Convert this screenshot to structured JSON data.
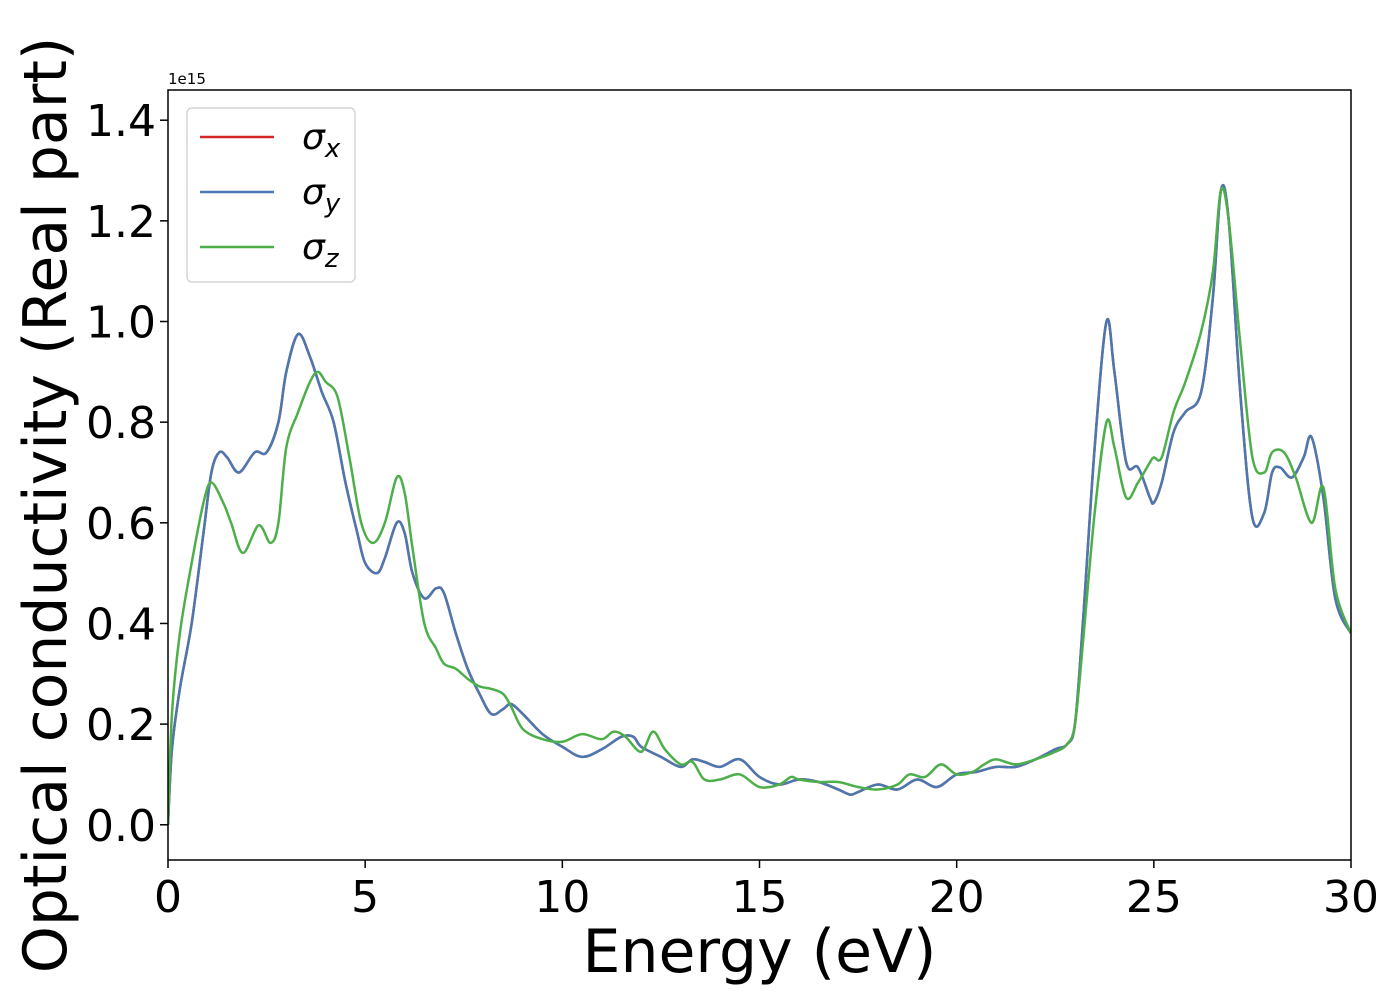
{
  "chart_data": {
    "type": "line",
    "xlabel": "Energy (eV)",
    "ylabel": "Optical conductivity (Real part)",
    "y_offset_text": "1e15",
    "xlim": [
      0,
      30
    ],
    "ylim": [
      -0.07,
      1.46
    ],
    "x_ticks": [
      0,
      5,
      10,
      15,
      20,
      25,
      30
    ],
    "x_tick_labels": [
      "0",
      "5",
      "10",
      "15",
      "20",
      "25",
      "30"
    ],
    "y_ticks": [
      0.0,
      0.2,
      0.4,
      0.6,
      0.8,
      1.0,
      1.2,
      1.4
    ],
    "y_tick_labels": [
      "0.0",
      "0.2",
      "0.4",
      "0.6",
      "0.8",
      "1.0",
      "1.2",
      "1.4"
    ],
    "grid": false,
    "legend_position": "top-left",
    "series": [
      {
        "name": "σx",
        "legend_base": "σ",
        "legend_sub": "x",
        "color": "#d62728",
        "x": [
          0,
          0.1,
          0.3,
          0.6,
          0.9,
          1.1,
          1.3,
          1.5,
          1.8,
          2.2,
          2.5,
          2.8,
          3.0,
          3.3,
          3.6,
          3.9,
          4.2,
          4.5,
          4.8,
          5.0,
          5.3,
          5.5,
          5.8,
          6.0,
          6.2,
          6.5,
          6.8,
          7.0,
          7.3,
          7.6,
          7.9,
          8.2,
          8.5,
          8.7,
          9.0,
          9.5,
          10.0,
          10.5,
          11.0,
          11.5,
          11.8,
          12.0,
          12.5,
          13.0,
          13.3,
          13.6,
          14.0,
          14.5,
          15.0,
          15.5,
          16.0,
          16.5,
          17.0,
          17.3,
          17.5,
          18.0,
          18.5,
          19.0,
          19.5,
          20.0,
          20.5,
          21.0,
          21.5,
          22.0,
          22.5,
          22.8,
          23.0,
          23.2,
          23.5,
          23.8,
          24.0,
          24.3,
          24.6,
          24.9,
          25.0,
          25.2,
          25.5,
          25.8,
          26.2,
          26.5,
          26.7,
          26.9,
          27.2,
          27.5,
          27.8,
          28.0,
          28.2,
          28.5,
          28.8,
          29.0,
          29.3,
          29.6,
          30.0
        ],
        "y": [
          0.0,
          0.15,
          0.27,
          0.4,
          0.58,
          0.7,
          0.74,
          0.73,
          0.7,
          0.74,
          0.74,
          0.8,
          0.9,
          0.975,
          0.93,
          0.86,
          0.8,
          0.68,
          0.58,
          0.52,
          0.5,
          0.53,
          0.6,
          0.58,
          0.5,
          0.45,
          0.47,
          0.46,
          0.38,
          0.31,
          0.26,
          0.22,
          0.23,
          0.24,
          0.22,
          0.18,
          0.155,
          0.135,
          0.15,
          0.175,
          0.175,
          0.155,
          0.135,
          0.115,
          0.13,
          0.125,
          0.115,
          0.13,
          0.095,
          0.08,
          0.09,
          0.085,
          0.07,
          0.06,
          0.065,
          0.08,
          0.07,
          0.09,
          0.075,
          0.1,
          0.105,
          0.115,
          0.115,
          0.13,
          0.15,
          0.16,
          0.2,
          0.4,
          0.75,
          1.0,
          0.9,
          0.72,
          0.71,
          0.65,
          0.64,
          0.68,
          0.78,
          0.82,
          0.86,
          1.05,
          1.26,
          1.2,
          0.85,
          0.61,
          0.62,
          0.7,
          0.71,
          0.69,
          0.73,
          0.77,
          0.65,
          0.45,
          0.38
        ]
      },
      {
        "name": "σy",
        "legend_base": "σ",
        "legend_sub": "y",
        "color": "#4a78b0",
        "x": [
          0,
          0.1,
          0.3,
          0.6,
          0.9,
          1.1,
          1.3,
          1.5,
          1.8,
          2.2,
          2.5,
          2.8,
          3.0,
          3.3,
          3.6,
          3.9,
          4.2,
          4.5,
          4.8,
          5.0,
          5.3,
          5.5,
          5.8,
          6.0,
          6.2,
          6.5,
          6.8,
          7.0,
          7.3,
          7.6,
          7.9,
          8.2,
          8.5,
          8.7,
          9.0,
          9.5,
          10.0,
          10.5,
          11.0,
          11.5,
          11.8,
          12.0,
          12.5,
          13.0,
          13.3,
          13.6,
          14.0,
          14.5,
          15.0,
          15.5,
          16.0,
          16.5,
          17.0,
          17.3,
          17.5,
          18.0,
          18.5,
          19.0,
          19.5,
          20.0,
          20.5,
          21.0,
          21.5,
          22.0,
          22.5,
          22.8,
          23.0,
          23.2,
          23.5,
          23.8,
          24.0,
          24.3,
          24.6,
          24.9,
          25.0,
          25.2,
          25.5,
          25.8,
          26.2,
          26.5,
          26.7,
          26.9,
          27.2,
          27.5,
          27.8,
          28.0,
          28.2,
          28.5,
          28.8,
          29.0,
          29.3,
          29.6,
          30.0
        ],
        "y": [
          0.0,
          0.15,
          0.27,
          0.4,
          0.58,
          0.7,
          0.74,
          0.73,
          0.7,
          0.74,
          0.74,
          0.8,
          0.9,
          0.975,
          0.93,
          0.86,
          0.8,
          0.68,
          0.58,
          0.52,
          0.5,
          0.53,
          0.6,
          0.58,
          0.5,
          0.45,
          0.47,
          0.46,
          0.38,
          0.31,
          0.26,
          0.22,
          0.23,
          0.24,
          0.22,
          0.18,
          0.155,
          0.135,
          0.15,
          0.175,
          0.175,
          0.155,
          0.135,
          0.115,
          0.13,
          0.125,
          0.115,
          0.13,
          0.095,
          0.08,
          0.09,
          0.085,
          0.07,
          0.06,
          0.065,
          0.08,
          0.07,
          0.09,
          0.075,
          0.1,
          0.105,
          0.115,
          0.115,
          0.13,
          0.15,
          0.16,
          0.2,
          0.4,
          0.75,
          1.0,
          0.9,
          0.72,
          0.71,
          0.65,
          0.64,
          0.68,
          0.78,
          0.82,
          0.86,
          1.05,
          1.26,
          1.2,
          0.85,
          0.61,
          0.62,
          0.7,
          0.71,
          0.69,
          0.73,
          0.77,
          0.65,
          0.45,
          0.38
        ]
      },
      {
        "name": "σz",
        "legend_base": "σ",
        "legend_sub": "z",
        "color": "#4daf4a",
        "x": [
          0,
          0.1,
          0.3,
          0.6,
          0.9,
          1.1,
          1.4,
          1.6,
          1.9,
          2.3,
          2.6,
          2.8,
          3.0,
          3.3,
          3.6,
          3.8,
          4.0,
          4.3,
          4.6,
          4.9,
          5.2,
          5.5,
          5.8,
          6.0,
          6.2,
          6.5,
          6.8,
          7.0,
          7.3,
          7.6,
          7.9,
          8.2,
          8.5,
          8.7,
          9.0,
          9.5,
          10.0,
          10.5,
          11.0,
          11.3,
          11.6,
          12.0,
          12.3,
          12.6,
          13.0,
          13.3,
          13.6,
          14.0,
          14.5,
          15.0,
          15.5,
          15.8,
          16.0,
          16.5,
          17.0,
          17.5,
          18.0,
          18.5,
          18.8,
          19.2,
          19.6,
          20.0,
          20.4,
          20.7,
          21.0,
          21.5,
          22.0,
          22.5,
          22.8,
          23.0,
          23.2,
          23.5,
          23.8,
          24.0,
          24.3,
          24.6,
          24.9,
          25.0,
          25.2,
          25.5,
          25.8,
          26.2,
          26.5,
          26.7,
          26.9,
          27.2,
          27.5,
          27.8,
          28.0,
          28.3,
          28.6,
          29.0,
          29.3,
          29.6,
          30.0
        ],
        "y": [
          0.0,
          0.22,
          0.38,
          0.52,
          0.64,
          0.68,
          0.64,
          0.6,
          0.54,
          0.595,
          0.56,
          0.6,
          0.75,
          0.82,
          0.88,
          0.9,
          0.88,
          0.85,
          0.73,
          0.6,
          0.56,
          0.6,
          0.69,
          0.66,
          0.55,
          0.4,
          0.35,
          0.32,
          0.31,
          0.29,
          0.275,
          0.27,
          0.26,
          0.235,
          0.19,
          0.17,
          0.165,
          0.18,
          0.17,
          0.185,
          0.175,
          0.145,
          0.185,
          0.15,
          0.12,
          0.125,
          0.09,
          0.09,
          0.1,
          0.075,
          0.08,
          0.095,
          0.09,
          0.085,
          0.085,
          0.075,
          0.07,
          0.08,
          0.1,
          0.095,
          0.12,
          0.1,
          0.105,
          0.12,
          0.13,
          0.12,
          0.13,
          0.145,
          0.16,
          0.2,
          0.36,
          0.62,
          0.8,
          0.75,
          0.65,
          0.68,
          0.72,
          0.73,
          0.73,
          0.82,
          0.88,
          0.98,
          1.1,
          1.26,
          1.2,
          0.95,
          0.73,
          0.7,
          0.74,
          0.74,
          0.69,
          0.6,
          0.67,
          0.47,
          0.38
        ]
      }
    ]
  }
}
